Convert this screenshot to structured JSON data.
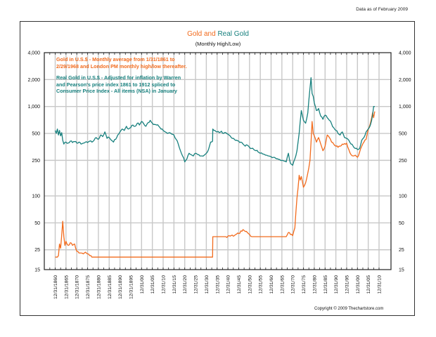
{
  "as_of": "Data as of February 2009",
  "chart_data": {
    "type": "line",
    "title_part1": "Gold and",
    "title_part2": "Real Gold",
    "subtitle": "(Monthly High/Low)",
    "yscale": "log",
    "ylim": [
      15,
      4000
    ],
    "y_ticks": [
      4000,
      2000,
      1000,
      500,
      250,
      100,
      50,
      25,
      15
    ],
    "y_tick_labels": [
      "4,000",
      "2,000",
      "1,000",
      "500",
      "250",
      "100",
      "50",
      "25",
      "15"
    ],
    "xlim": [
      1860,
      2013
    ],
    "x_ticks": [
      1861,
      1866,
      1871,
      1876,
      1881,
      1886,
      1891,
      1896,
      1901,
      1906,
      1911,
      1916,
      1921,
      1926,
      1931,
      1936,
      1941,
      1946,
      1951,
      1956,
      1961,
      1966,
      1971,
      1976,
      1981,
      1986,
      1991,
      1996,
      2001,
      2006,
      2011
    ],
    "x_tick_labels": [
      "12/31/1860",
      "12/31/1865",
      "12/31/1870",
      "12/31/1875",
      "12/31/1880",
      "12/31/1885",
      "12/31/1890",
      "12/31/1895",
      "12/31/00",
      "12/31/05",
      "12/31/10",
      "12/31/15",
      "12/31/20",
      "12/31/25",
      "12/31/30",
      "12/31/35",
      "12/31/40",
      "12/31/45",
      "12/31/50",
      "12/31/55",
      "12/31/60",
      "12/31/65",
      "12/31/70",
      "12/31/75",
      "12/31/80",
      "12/31/85",
      "12/31/90",
      "12/31/95",
      "12/31/00",
      "12/31/05",
      "12/31/10"
    ],
    "grid": true,
    "legend": [
      {
        "text": "Gold in U.S.$ - Monthly average from 1/31/1861 to 2/29/1968 and London PM monthly high/low thereafter.",
        "color": "#f26b1d"
      },
      {
        "text": "Real Gold in U.S.$ - Adjusted for inflation by Warren and Pearson's price index 1861 to 1912 spliced to Consumer Price Index - All items (NSA) in January",
        "color": "#17807e"
      }
    ],
    "legend_position": "top-left",
    "series": [
      {
        "name": "Gold in U.S.$",
        "color": "#f26b1d",
        "x": [
          1861,
          1862,
          1862.5,
          1863,
          1863.5,
          1864,
          1864.5,
          1865,
          1865.5,
          1866,
          1867,
          1868,
          1869,
          1870,
          1871,
          1872,
          1873,
          1874,
          1875,
          1876,
          1877,
          1878,
          1879,
          1880,
          1890,
          1900,
          1910,
          1920,
          1933.9,
          1934,
          1940,
          1944,
          1946,
          1948,
          1949,
          1950,
          1952,
          1955,
          1960,
          1965,
          1968,
          1969,
          1970,
          1971,
          1972,
          1973,
          1974,
          1974.5,
          1975,
          1976,
          1977,
          1978,
          1979,
          1979.5,
          1980,
          1980.5,
          1981,
          1982,
          1983,
          1984,
          1985,
          1986,
          1987,
          1988,
          1989,
          1990,
          1991,
          1992,
          1993,
          1994,
          1995,
          1996,
          1997,
          1998,
          1999,
          2000,
          2001,
          2002,
          2003,
          2004,
          2005,
          2006,
          2007,
          2008,
          2008.5,
          2009
        ],
        "values": [
          20.7,
          20.7,
          21.5,
          29,
          26,
          36,
          52,
          35,
          28,
          31,
          28,
          30,
          28,
          29,
          24,
          23,
          23,
          22.5,
          23.5,
          22.5,
          21.5,
          20.7,
          20.7,
          20.7,
          20.7,
          20.7,
          20.7,
          20.7,
          20.7,
          35,
          35,
          36,
          38,
          42,
          40,
          39,
          35,
          35,
          35,
          35,
          35,
          39,
          37,
          36,
          44,
          95,
          170,
          150,
          165,
          125,
          140,
          180,
          250,
          400,
          680,
          500,
          470,
          400,
          450,
          380,
          320,
          360,
          480,
          450,
          400,
          380,
          360,
          350,
          360,
          380,
          385,
          390,
          330,
          290,
          280,
          285,
          270,
          310,
          360,
          400,
          430,
          550,
          650,
          850,
          750,
          880
        ]
      },
      {
        "name": "Real Gold in U.S.$",
        "color": "#17807e",
        "x": [
          1861,
          1861.5,
          1862,
          1862.5,
          1863,
          1863.5,
          1864,
          1864.5,
          1865,
          1866,
          1867,
          1868,
          1869,
          1870,
          1871,
          1872,
          1873,
          1874,
          1875,
          1876,
          1877,
          1878,
          1879,
          1880,
          1881,
          1882,
          1883,
          1884,
          1885,
          1886,
          1887,
          1888,
          1889,
          1890,
          1891,
          1892,
          1893,
          1894,
          1895,
          1896,
          1897,
          1898,
          1899,
          1900,
          1901,
          1902,
          1903,
          1904,
          1905,
          1906,
          1907,
          1908,
          1909,
          1910,
          1911,
          1912,
          1913,
          1914,
          1915,
          1916,
          1917,
          1918,
          1919,
          1920,
          1921,
          1922,
          1923,
          1924,
          1925,
          1926,
          1927,
          1928,
          1929,
          1930,
          1931,
          1932,
          1933,
          1933.9,
          1934,
          1935,
          1936,
          1937,
          1938,
          1939,
          1940,
          1941,
          1942,
          1943,
          1944,
          1945,
          1946,
          1947,
          1948,
          1949,
          1950,
          1951,
          1952,
          1953,
          1954,
          1955,
          1956,
          1957,
          1958,
          1959,
          1960,
          1961,
          1962,
          1963,
          1964,
          1965,
          1966,
          1967,
          1968,
          1969,
          1970,
          1971,
          1972,
          1973,
          1974,
          1975,
          1976,
          1977,
          1978,
          1979,
          1979.5,
          1980,
          1980.5,
          1981,
          1982,
          1983,
          1984,
          1985,
          1986,
          1987,
          1988,
          1989,
          1990,
          1991,
          1992,
          1993,
          1994,
          1995,
          1996,
          1997,
          1998,
          1999,
          2000,
          2001,
          2002,
          2003,
          2004,
          2005,
          2006,
          2007,
          2008,
          2008.5,
          2009
        ],
        "values": [
          540,
          500,
          560,
          480,
          540,
          470,
          510,
          420,
          380,
          400,
          390,
          410,
          395,
          405,
          390,
          400,
          380,
          390,
          400,
          395,
          410,
          400,
          420,
          450,
          430,
          480,
          460,
          520,
          440,
          450,
          420,
          400,
          430,
          480,
          520,
          560,
          540,
          600,
          560,
          580,
          620,
          600,
          650,
          620,
          680,
          640,
          600,
          660,
          700,
          650,
          630,
          620,
          600,
          560,
          540,
          520,
          500,
          510,
          490,
          480,
          430,
          380,
          320,
          280,
          240,
          260,
          300,
          290,
          280,
          300,
          290,
          280,
          280,
          285,
          300,
          330,
          400,
          410,
          560,
          540,
          520,
          510,
          530,
          500,
          510,
          490,
          470,
          440,
          430,
          420,
          410,
          400,
          380,
          360,
          370,
          350,
          340,
          330,
          320,
          310,
          300,
          295,
          290,
          285,
          280,
          275,
          270,
          265,
          260,
          255,
          250,
          245,
          240,
          300,
          230,
          220,
          260,
          320,
          500,
          900,
          700,
          650,
          850,
          1600,
          2100,
          1400,
          1300,
          1100,
          900,
          950,
          780,
          720,
          800,
          750,
          700,
          640,
          580,
          540,
          500,
          480,
          520,
          450,
          440,
          420,
          380,
          360,
          340,
          330,
          340,
          420,
          450,
          520,
          560,
          620,
          800,
          1000,
          1000
        ]
      }
    ]
  },
  "copyright": "Copyright © 2009 Thechartstore.com"
}
